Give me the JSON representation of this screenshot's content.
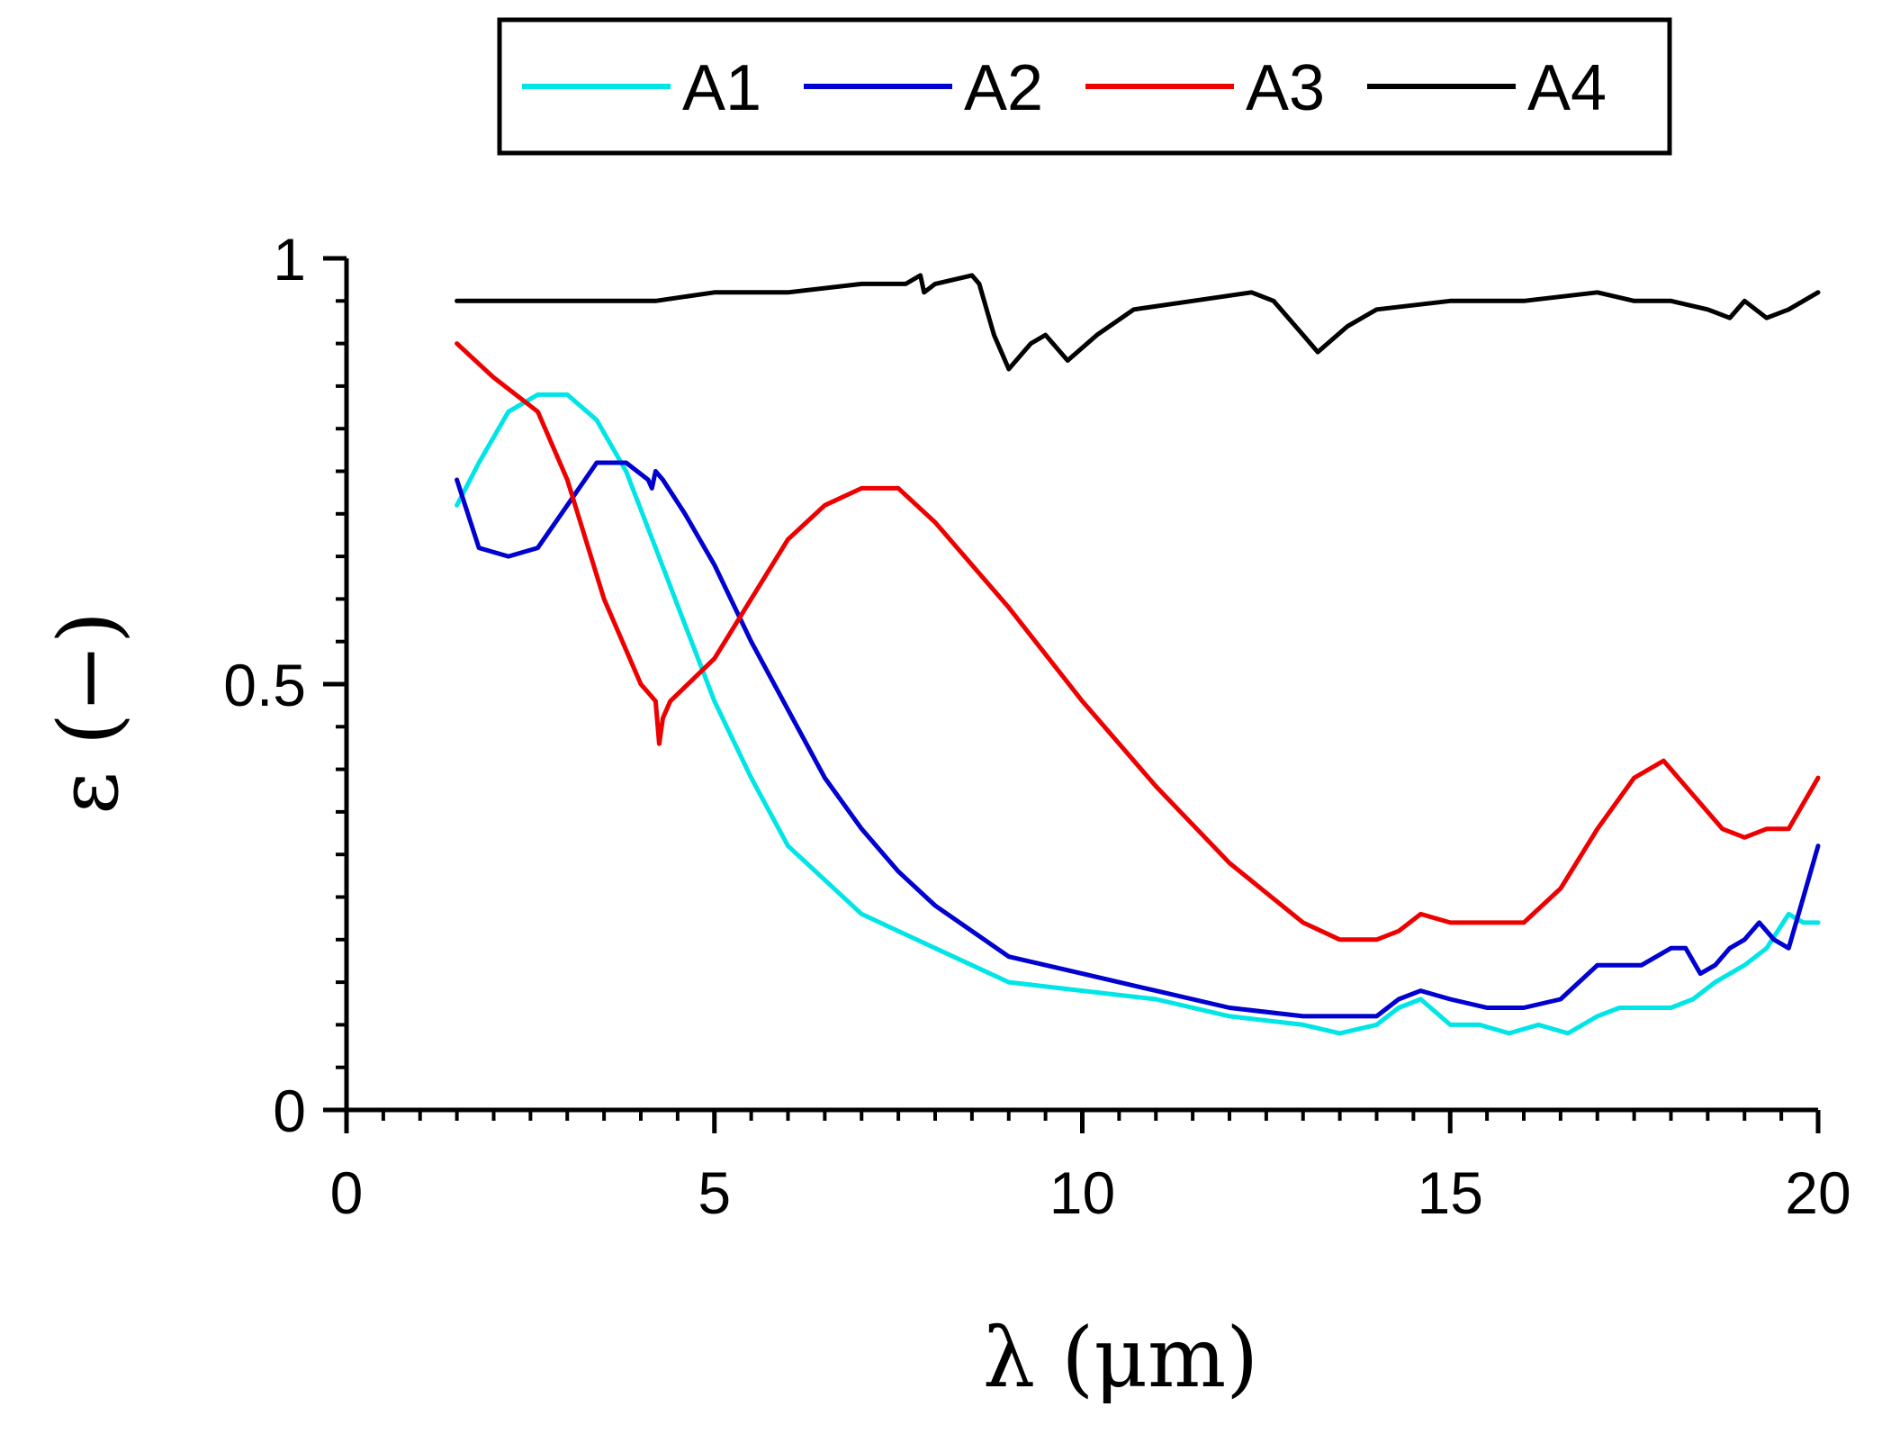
{
  "chart_data": {
    "type": "line",
    "title": "",
    "xlabel": "λ (μm)",
    "ylabel": "ε (−)",
    "xlim": [
      0,
      20
    ],
    "ylim": [
      0,
      1
    ],
    "xticks": [
      0,
      5,
      10,
      15,
      20
    ],
    "xtick_labels": [
      "0",
      "5",
      "10",
      "15",
      "20"
    ],
    "yticks": [
      0,
      0.5,
      1
    ],
    "ytick_labels": [
      "0",
      "0.5",
      "1"
    ],
    "grid": false,
    "legend_position": "top",
    "series": [
      {
        "name": "A1",
        "color": "#00e5e5",
        "x": [
          1.5,
          1.8,
          2.2,
          2.6,
          3.0,
          3.4,
          3.8,
          4.2,
          4.6,
          5.0,
          5.5,
          6.0,
          6.5,
          7.0,
          8.0,
          9.0,
          10.0,
          11.0,
          12.0,
          13.0,
          13.5,
          14.0,
          14.3,
          14.6,
          15.0,
          15.4,
          15.8,
          16.2,
          16.6,
          17.0,
          17.3,
          17.6,
          18.0,
          18.3,
          18.6,
          19.0,
          19.3,
          19.6,
          19.8,
          20.0
        ],
        "values": [
          0.71,
          0.76,
          0.82,
          0.84,
          0.84,
          0.81,
          0.75,
          0.66,
          0.57,
          0.48,
          0.39,
          0.31,
          0.27,
          0.23,
          0.19,
          0.15,
          0.14,
          0.13,
          0.11,
          0.1,
          0.09,
          0.1,
          0.12,
          0.13,
          0.1,
          0.1,
          0.09,
          0.1,
          0.09,
          0.11,
          0.12,
          0.12,
          0.12,
          0.13,
          0.15,
          0.17,
          0.19,
          0.23,
          0.22,
          0.22
        ]
      },
      {
        "name": "A2",
        "color": "#0000d0",
        "x": [
          1.5,
          1.8,
          2.2,
          2.6,
          3.0,
          3.4,
          3.8,
          4.1,
          4.15,
          4.2,
          4.3,
          4.6,
          5.0,
          5.5,
          6.0,
          6.5,
          7.0,
          7.5,
          8.0,
          9.0,
          10.0,
          11.0,
          12.0,
          13.0,
          13.3,
          14.0,
          14.3,
          14.6,
          15.0,
          15.5,
          16.0,
          16.5,
          17.0,
          17.3,
          17.6,
          18.0,
          18.2,
          18.4,
          18.6,
          18.8,
          19.0,
          19.2,
          19.4,
          19.6,
          19.8,
          20.0
        ],
        "values": [
          0.74,
          0.66,
          0.65,
          0.66,
          0.71,
          0.76,
          0.76,
          0.74,
          0.73,
          0.75,
          0.74,
          0.7,
          0.64,
          0.55,
          0.47,
          0.39,
          0.33,
          0.28,
          0.24,
          0.18,
          0.16,
          0.14,
          0.12,
          0.11,
          0.11,
          0.11,
          0.13,
          0.14,
          0.13,
          0.12,
          0.12,
          0.13,
          0.17,
          0.17,
          0.17,
          0.19,
          0.19,
          0.16,
          0.17,
          0.19,
          0.2,
          0.22,
          0.2,
          0.19,
          0.25,
          0.31
        ]
      },
      {
        "name": "A3",
        "color": "#ee0000",
        "x": [
          1.5,
          2.0,
          2.6,
          3.0,
          3.5,
          4.0,
          4.2,
          4.25,
          4.3,
          4.4,
          5.0,
          5.5,
          6.0,
          6.5,
          7.0,
          7.5,
          8.0,
          9.0,
          10.0,
          11.0,
          12.0,
          13.0,
          13.5,
          14.0,
          14.3,
          14.6,
          15.0,
          15.5,
          16.0,
          16.5,
          17.0,
          17.5,
          17.9,
          18.3,
          18.7,
          19.0,
          19.3,
          19.6,
          20.0
        ],
        "values": [
          0.9,
          0.86,
          0.82,
          0.74,
          0.6,
          0.5,
          0.48,
          0.43,
          0.46,
          0.48,
          0.53,
          0.6,
          0.67,
          0.71,
          0.73,
          0.73,
          0.69,
          0.59,
          0.48,
          0.38,
          0.29,
          0.22,
          0.2,
          0.2,
          0.21,
          0.23,
          0.22,
          0.22,
          0.22,
          0.26,
          0.33,
          0.39,
          0.41,
          0.37,
          0.33,
          0.32,
          0.33,
          0.33,
          0.39
        ]
      },
      {
        "name": "A4",
        "color": "#000000",
        "x": [
          1.5,
          2.5,
          3.5,
          4.2,
          5.0,
          6.0,
          7.0,
          7.6,
          7.8,
          7.85,
          8.0,
          8.5,
          8.6,
          8.8,
          9.0,
          9.3,
          9.5,
          9.8,
          10.2,
          10.7,
          11.5,
          12.3,
          12.6,
          13.0,
          13.2,
          13.6,
          14.0,
          15.0,
          16.0,
          17.0,
          17.5,
          18.0,
          18.5,
          18.8,
          19.0,
          19.3,
          19.6,
          20.0
        ],
        "values": [
          0.95,
          0.95,
          0.95,
          0.95,
          0.96,
          0.96,
          0.97,
          0.97,
          0.98,
          0.96,
          0.97,
          0.98,
          0.97,
          0.91,
          0.87,
          0.9,
          0.91,
          0.88,
          0.91,
          0.94,
          0.95,
          0.96,
          0.95,
          0.91,
          0.89,
          0.92,
          0.94,
          0.95,
          0.95,
          0.96,
          0.95,
          0.95,
          0.94,
          0.93,
          0.95,
          0.93,
          0.94,
          0.96
        ]
      }
    ]
  }
}
